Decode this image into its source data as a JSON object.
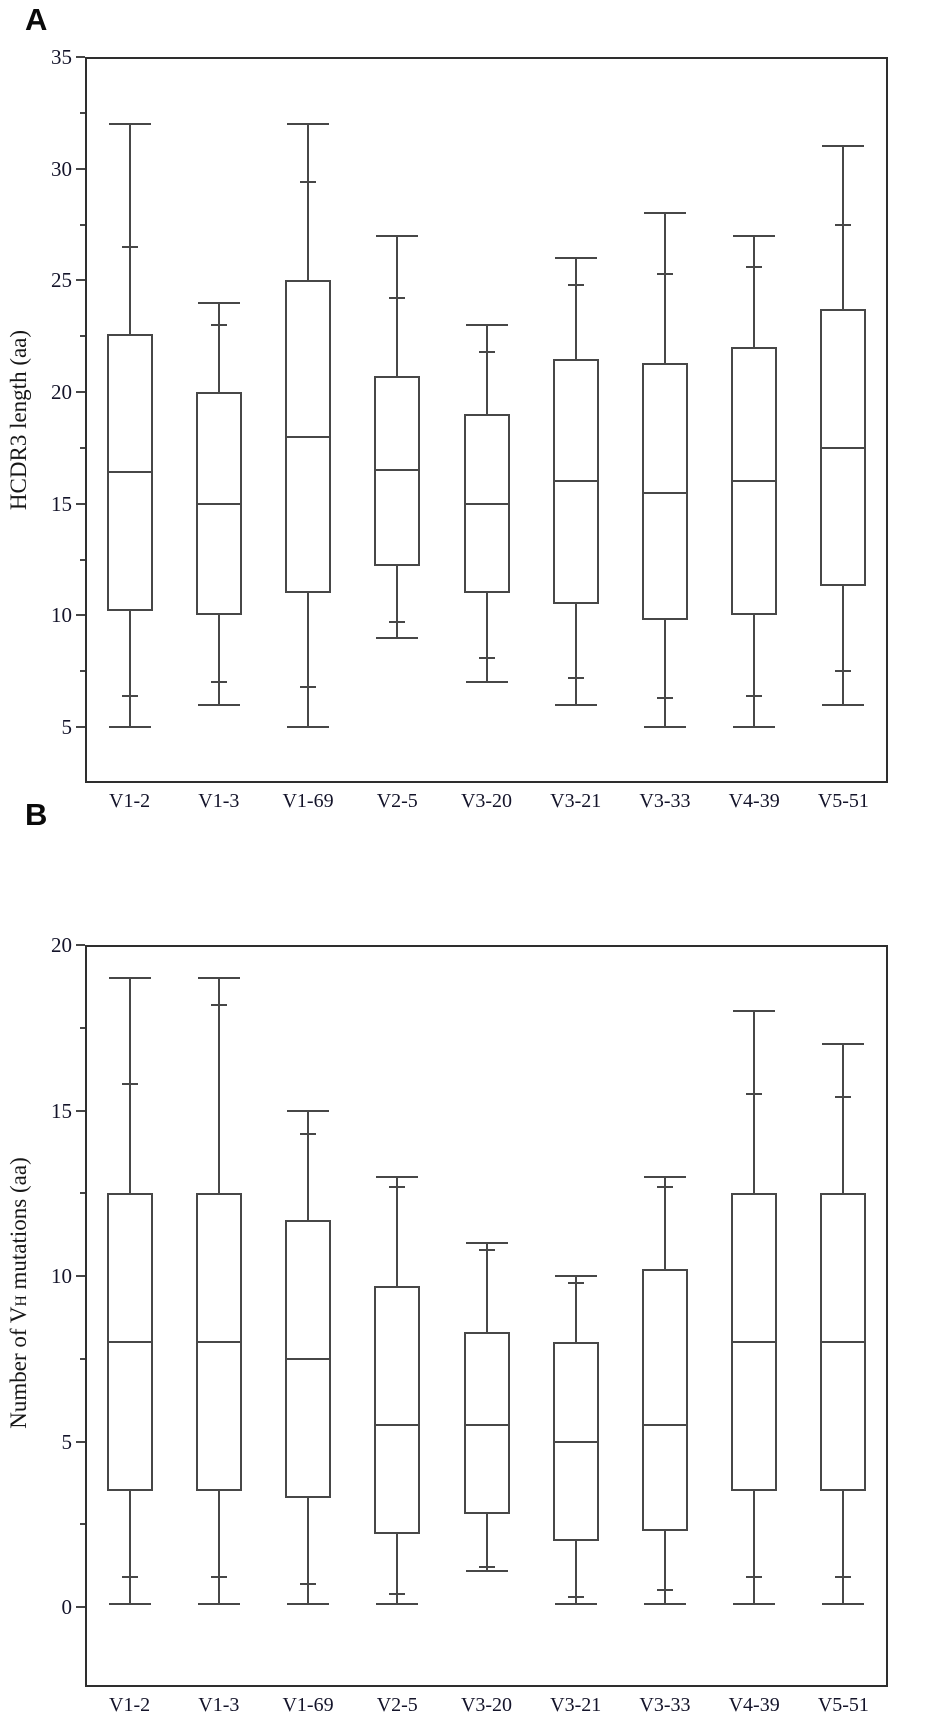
{
  "figure": {
    "background": "#ffffff",
    "line_color": "#474747",
    "frame_color": "#2e2e2e",
    "text_color": "#14142a"
  },
  "panels": [
    {
      "letter": "A",
      "ylabel": "HCDR3 length (aa)",
      "ylabel_parts": {
        "prefix": "HCDR3 length (aa)",
        "sub": "",
        "suffix": ""
      }
    },
    {
      "letter": "B",
      "ylabel": "Number of VH mutations (aa)",
      "ylabel_parts": {
        "prefix": "Number of V",
        "sub": "H",
        "suffix": " mutations (aa)"
      }
    }
  ],
  "chart_data": [
    {
      "type": "box",
      "panel": "A",
      "title": "",
      "xlabel": "",
      "ylabel": "HCDR3 length (aa)",
      "ylim": [
        5,
        35
      ],
      "yticks_major": [
        5,
        10,
        15,
        20,
        25,
        30,
        35
      ],
      "yticks_minor": [
        7.5,
        12.5,
        17.5,
        22.5,
        27.5,
        32.5
      ],
      "grid": false,
      "legend": false,
      "categories": [
        "V1-2",
        "V1-3",
        "V1-69",
        "V2-5",
        "V3-20",
        "V3-21",
        "V3-33",
        "V4-39",
        "V5-51"
      ],
      "series": [
        {
          "name": "V1-2",
          "whisker_min": 5.0,
          "p5": 6.4,
          "q1": 10.2,
          "median": 16.4,
          "q3": 22.6,
          "p95": 26.5,
          "whisker_max": 32.0
        },
        {
          "name": "V1-3",
          "whisker_min": 6.0,
          "p5": 7.0,
          "q1": 10.0,
          "median": 15.0,
          "q3": 20.0,
          "p95": 23.0,
          "whisker_max": 24.0
        },
        {
          "name": "V1-69",
          "whisker_min": 5.0,
          "p5": 6.8,
          "q1": 11.0,
          "median": 18.0,
          "q3": 25.0,
          "p95": 29.4,
          "whisker_max": 32.0
        },
        {
          "name": "V2-5",
          "whisker_min": 9.0,
          "p5": 9.7,
          "q1": 12.2,
          "median": 16.5,
          "q3": 20.7,
          "p95": 24.2,
          "whisker_max": 27.0
        },
        {
          "name": "V3-20",
          "whisker_min": 7.0,
          "p5": 8.1,
          "q1": 11.0,
          "median": 15.0,
          "q3": 19.0,
          "p95": 21.8,
          "whisker_max": 23.0
        },
        {
          "name": "V3-21",
          "whisker_min": 6.0,
          "p5": 7.2,
          "q1": 10.5,
          "median": 16.0,
          "q3": 21.5,
          "p95": 24.8,
          "whisker_max": 26.0
        },
        {
          "name": "V3-33",
          "whisker_min": 5.0,
          "p5": 6.3,
          "q1": 9.8,
          "median": 15.5,
          "q3": 21.3,
          "p95": 25.3,
          "whisker_max": 28.0
        },
        {
          "name": "V4-39",
          "whisker_min": 5.0,
          "p5": 6.4,
          "q1": 10.0,
          "median": 16.0,
          "q3": 22.0,
          "p95": 25.6,
          "whisker_max": 27.0
        },
        {
          "name": "V5-51",
          "whisker_min": 6.0,
          "p5": 7.5,
          "q1": 11.3,
          "median": 17.5,
          "q3": 23.7,
          "p95": 27.5,
          "whisker_max": 31.0
        }
      ]
    },
    {
      "type": "box",
      "panel": "B",
      "title": "",
      "xlabel": "",
      "ylabel": "Number of VH mutations (aa)",
      "ylim": [
        0,
        20
      ],
      "yticks_major": [
        0,
        5,
        10,
        15,
        20
      ],
      "yticks_minor": [
        2.5,
        7.5,
        12.5,
        17.5
      ],
      "grid": false,
      "legend": false,
      "categories": [
        "V1-2",
        "V1-3",
        "V1-69",
        "V2-5",
        "V3-20",
        "V3-21",
        "V3-33",
        "V4-39",
        "V5-51"
      ],
      "series": [
        {
          "name": "V1-2",
          "whisker_min": 0.1,
          "p5": 0.9,
          "q1": 3.5,
          "median": 8.0,
          "q3": 12.5,
          "p95": 15.8,
          "whisker_max": 19.0
        },
        {
          "name": "V1-3",
          "whisker_min": 0.1,
          "p5": 0.9,
          "q1": 3.5,
          "median": 8.0,
          "q3": 12.5,
          "p95": 18.2,
          "whisker_max": 19.0
        },
        {
          "name": "V1-69",
          "whisker_min": 0.1,
          "p5": 0.7,
          "q1": 3.3,
          "median": 7.5,
          "q3": 11.7,
          "p95": 14.3,
          "whisker_max": 15.0
        },
        {
          "name": "V2-5",
          "whisker_min": 0.1,
          "p5": 0.4,
          "q1": 2.2,
          "median": 5.5,
          "q3": 9.7,
          "p95": 12.7,
          "whisker_max": 13.0
        },
        {
          "name": "V3-20",
          "whisker_min": 1.1,
          "p5": 1.2,
          "q1": 2.8,
          "median": 5.5,
          "q3": 8.3,
          "p95": 10.8,
          "whisker_max": 11.0
        },
        {
          "name": "V3-21",
          "whisker_min": 0.1,
          "p5": 0.3,
          "q1": 2.0,
          "median": 5.0,
          "q3": 8.0,
          "p95": 9.8,
          "whisker_max": 10.0
        },
        {
          "name": "V3-33",
          "whisker_min": 0.1,
          "p5": 0.5,
          "q1": 2.3,
          "median": 5.5,
          "q3": 10.2,
          "p95": 12.7,
          "whisker_max": 13.0
        },
        {
          "name": "V4-39",
          "whisker_min": 0.1,
          "p5": 0.9,
          "q1": 3.5,
          "median": 8.0,
          "q3": 12.5,
          "p95": 15.5,
          "whisker_max": 18.0
        },
        {
          "name": "V5-51",
          "whisker_min": 0.1,
          "p5": 0.9,
          "q1": 3.5,
          "median": 8.0,
          "q3": 12.5,
          "p95": 15.4,
          "whisker_max": 17.0
        }
      ]
    }
  ]
}
